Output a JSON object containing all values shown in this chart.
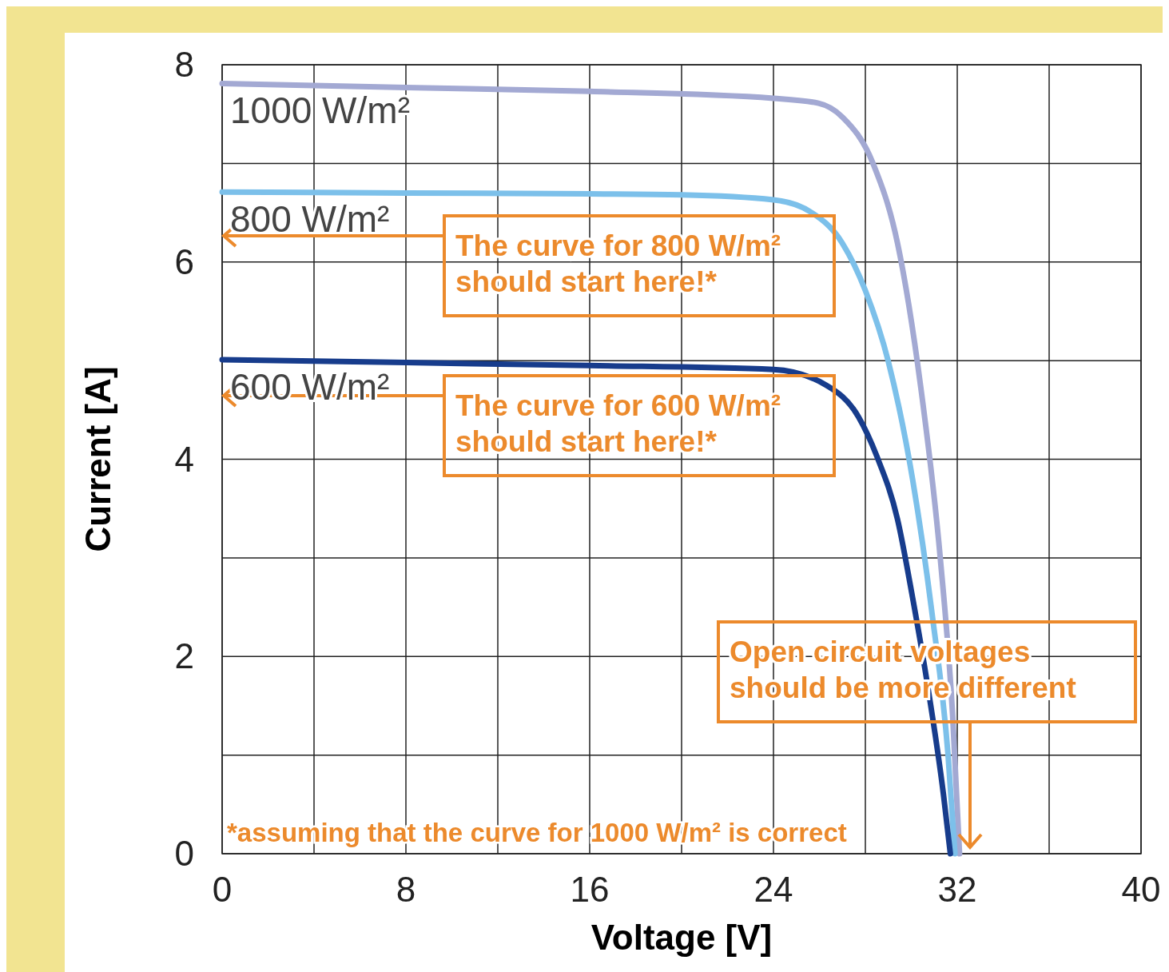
{
  "chart_data": {
    "type": "line",
    "xlabel": "Voltage [V]",
    "ylabel": "Current [A]",
    "xlim": [
      0,
      40
    ],
    "ylim": [
      0,
      8
    ],
    "xticks": [
      0,
      {
        "value": 4,
        "label": null
      },
      8,
      {
        "value": 12,
        "label": null
      },
      16,
      {
        "value": 20,
        "label": null
      },
      24,
      {
        "value": 28,
        "label": null
      },
      32,
      {
        "value": 36,
        "label": null
      },
      40
    ],
    "yticks": [
      0,
      {
        "value": 1,
        "label": null
      },
      2,
      {
        "value": 3,
        "label": null
      },
      4,
      {
        "value": 5,
        "label": null
      },
      6,
      {
        "value": 7,
        "label": null
      },
      8
    ],
    "grid": true,
    "marker": "none",
    "line_style": "solid",
    "series": [
      {
        "name": "1000 W/m²",
        "color": "#a3a9d3",
        "x": [
          0,
          8,
          16,
          24,
          25.96,
          27,
          28.35,
          29.4,
          30.4,
          31.26,
          31.8,
          32.1
        ],
        "values": [
          7.81,
          7.77,
          7.73,
          7.66,
          7.61,
          7.47,
          6.99,
          6.19,
          4.75,
          3.0,
          1.4,
          0
        ]
      },
      {
        "name": "800 W/m²",
        "color": "#7cc0ea",
        "x": [
          0,
          8,
          16,
          20,
          24,
          25.6,
          27,
          28,
          29,
          30.06,
          30.9,
          31.6,
          31.9
        ],
        "values": [
          6.71,
          6.7,
          6.69,
          6.68,
          6.63,
          6.51,
          6.19,
          5.71,
          4.99,
          3.79,
          2.44,
          1.0,
          0
        ]
      },
      {
        "name": "600 W/m²",
        "color": "#173c8c",
        "x": [
          0,
          8,
          16,
          24,
          26.3,
          27.7,
          28.5,
          29.4,
          30.06,
          30.7,
          31.4,
          31.7
        ],
        "values": [
          5.01,
          4.98,
          4.95,
          4.91,
          4.75,
          4.43,
          4.03,
          3.39,
          2.59,
          1.72,
          0.6,
          0
        ]
      }
    ],
    "annotations": [
      "The curve for 800 W/m² should start here!*",
      "The curve for 600 W/m² should start here!*",
      "Open circuit voltages should be more different",
      "*assuming that the curve for 1000 W/m² is correct"
    ]
  }
}
